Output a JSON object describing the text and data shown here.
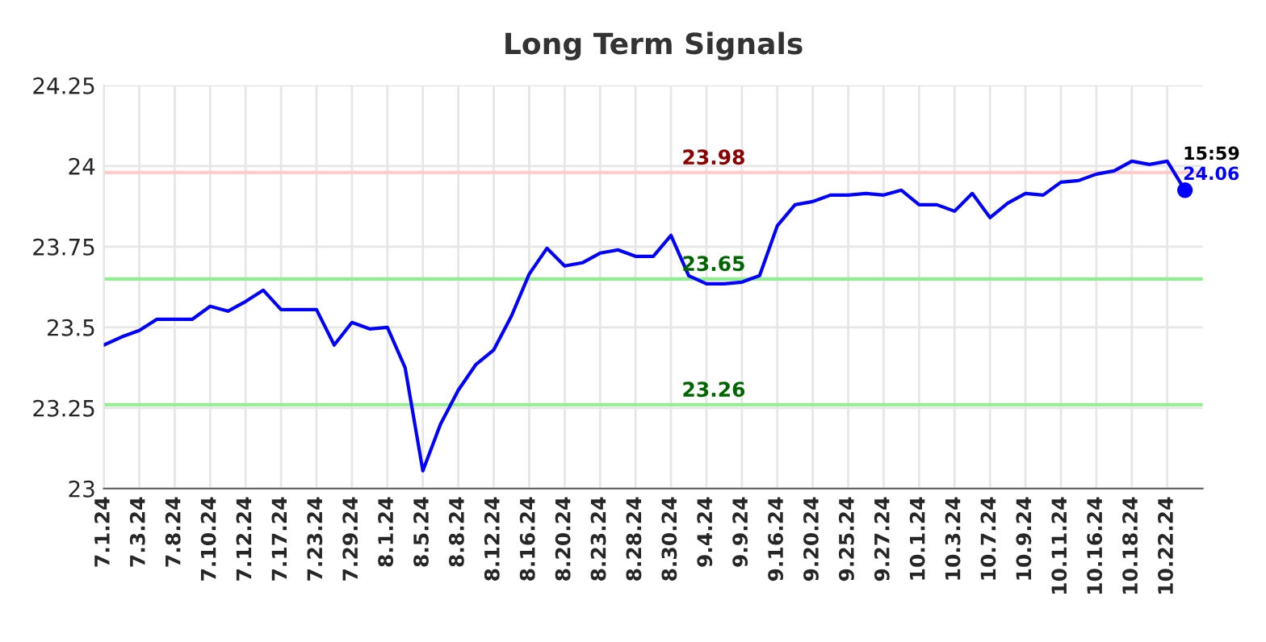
{
  "chart_data": {
    "type": "line",
    "title": "Long Term Signals",
    "categories": [
      "7.1.24",
      null,
      "7.3.24",
      null,
      "7.8.24",
      null,
      "7.10.24",
      null,
      "7.12.24",
      null,
      "7.17.24",
      null,
      "7.23.24",
      null,
      "7.29.24",
      null,
      "8.1.24",
      null,
      "8.5.24",
      null,
      "8.8.24",
      null,
      "8.12.24",
      null,
      "8.16.24",
      null,
      "8.20.24",
      null,
      "8.23.24",
      null,
      "8.28.24",
      null,
      "8.30.24",
      null,
      "9.4.24",
      null,
      "9.9.24",
      null,
      "9.16.24",
      null,
      "9.20.24",
      null,
      "9.25.24",
      null,
      "9.27.24",
      null,
      "10.1.24",
      null,
      "10.3.24",
      null,
      "10.7.24",
      null,
      "10.9.24",
      null,
      "10.11.24",
      null,
      "10.16.24",
      null,
      "10.18.24",
      null,
      "10.22.24",
      null
    ],
    "series": [
      {
        "color": "#0000ff",
        "values": [
          23.445,
          23.47,
          23.49,
          23.525,
          23.525,
          23.525,
          23.565,
          23.55,
          23.58,
          23.615,
          23.555,
          23.555,
          23.555,
          23.445,
          23.515,
          23.495,
          23.5,
          23.375,
          23.055,
          23.2,
          23.305,
          23.385,
          23.43,
          23.535,
          23.665,
          23.745,
          23.69,
          23.7,
          23.73,
          23.74,
          23.72,
          23.72,
          23.785,
          23.66,
          23.635,
          23.635,
          23.64,
          23.66,
          23.815,
          23.88,
          23.89,
          23.91,
          23.91,
          23.915,
          23.91,
          23.925,
          23.88,
          23.88,
          23.86,
          23.915,
          23.84,
          23.885,
          23.915,
          23.91,
          23.95,
          23.955,
          23.975,
          23.985,
          24.015,
          24.005,
          24.015,
          23.925
        ]
      },
      {
        "type": "scatter",
        "color": "#0000ff",
        "marker": "circle",
        "values": [
          null,
          null,
          null,
          null,
          null,
          null,
          null,
          null,
          null,
          null,
          null,
          null,
          null,
          null,
          null,
          null,
          null,
          null,
          null,
          null,
          null,
          null,
          null,
          null,
          null,
          null,
          null,
          null,
          null,
          null,
          null,
          null,
          null,
          null,
          null,
          null,
          null,
          null,
          null,
          null,
          null,
          null,
          null,
          null,
          null,
          null,
          null,
          null,
          null,
          null,
          null,
          null,
          null,
          null,
          null,
          null,
          null,
          null,
          null,
          null,
          null,
          23.925
        ]
      }
    ],
    "ylim": [
      23,
      24.25
    ],
    "yticks": [
      23,
      23.25,
      23.5,
      23.75,
      24,
      24.25
    ],
    "grid": true,
    "ref_lines": [
      {
        "axis": "y",
        "value": 23.98,
        "label": "23.98",
        "color": "#ffcccc"
      },
      {
        "axis": "y",
        "value": 23.65,
        "label": "23.65",
        "color": "#90ee90"
      },
      {
        "axis": "y",
        "value": 23.26,
        "label": "23.26",
        "color": "#90ee90"
      }
    ],
    "annotations": [
      "15:59",
      "24.06"
    ]
  }
}
